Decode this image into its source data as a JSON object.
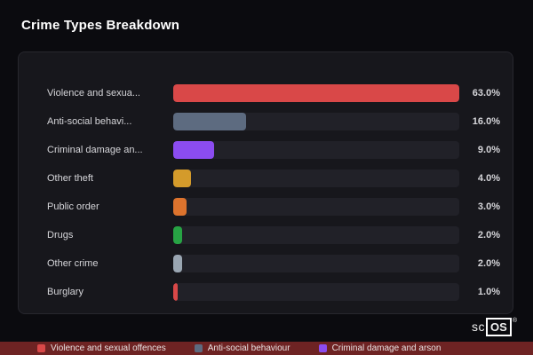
{
  "title": "Crime Types Breakdown",
  "chart_data": {
    "type": "bar",
    "orientation": "horizontal",
    "title": "Crime Types Breakdown",
    "categories": [
      "Violence and sexua...",
      "Anti-social behavi...",
      "Criminal damage an...",
      "Other theft",
      "Public order",
      "Drugs",
      "Other crime",
      "Burglary"
    ],
    "values": [
      63,
      16,
      9,
      4,
      3,
      2,
      2,
      1
    ],
    "value_labels": [
      "63.0%",
      "16.0%",
      "9.0%",
      "4.0%",
      "3.0%",
      "2.0%",
      "2.0%",
      "1.0%"
    ],
    "colors": [
      "#d94848",
      "#5d6b80",
      "#8b4cf0",
      "#d49b2b",
      "#dd732d",
      "#27a344",
      "#9aa6b2",
      "#d94848"
    ],
    "max_value": 63,
    "track_color": "#212128",
    "grid": false,
    "legend_position": "bottom"
  },
  "legend": [
    {
      "label": "Violence and sexual offences",
      "color": "#d94848"
    },
    {
      "label": "Anti-social behaviour",
      "color": "#5d6b80"
    },
    {
      "label": "Criminal damage and arson",
      "color": "#8b4cf0"
    }
  ],
  "logo": {
    "sc": "sc",
    "os": "OS",
    "reg": "®"
  }
}
